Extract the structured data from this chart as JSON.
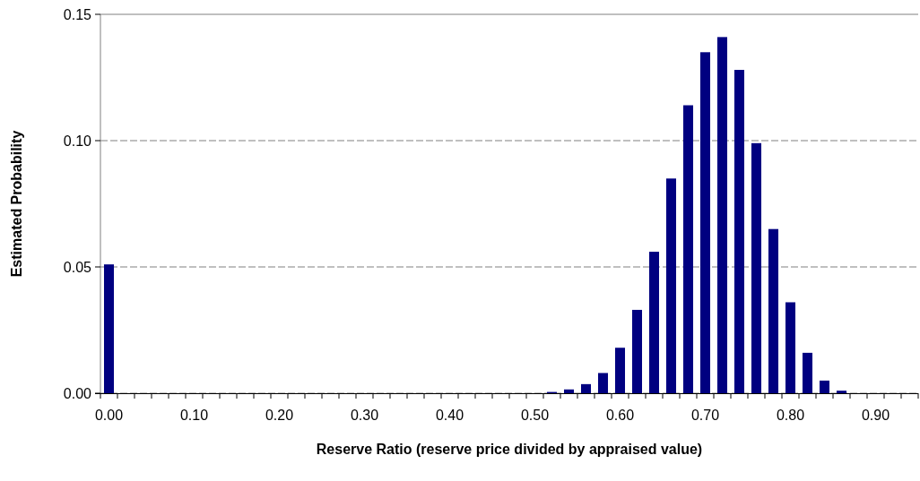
{
  "chart_data": {
    "type": "bar",
    "xlabel": "Reserve Ratio (reserve price divided by appraised value)",
    "ylabel": "Estimated Probability",
    "categories": [
      "0.00",
      null,
      null,
      null,
      null,
      "0.10",
      null,
      null,
      null,
      null,
      "0.20",
      null,
      null,
      null,
      null,
      "0.30",
      null,
      null,
      null,
      null,
      "0.40",
      null,
      null,
      null,
      null,
      "0.50",
      null,
      null,
      null,
      null,
      "0.60",
      null,
      null,
      null,
      null,
      "0.70",
      null,
      null,
      null,
      null,
      "0.80",
      null,
      null,
      null,
      null,
      "0.90",
      null,
      null
    ],
    "values": [
      0.051,
      0,
      0,
      0,
      0,
      0,
      0,
      0,
      0,
      0,
      0,
      0,
      0,
      0,
      0,
      0,
      0,
      0,
      0,
      0,
      0,
      0,
      0,
      0,
      0,
      0,
      0.0005,
      0.0015,
      0.0036,
      0.008,
      0.018,
      0.033,
      0.056,
      0.085,
      0.114,
      0.135,
      0.141,
      0.128,
      0.099,
      0.065,
      0.036,
      0.016,
      0.005,
      0.001,
      0,
      0,
      0,
      0
    ],
    "color": "#000080",
    "ylim": [
      0,
      0.15
    ],
    "yticks": [
      {
        "value": 0,
        "label": "0.00"
      },
      {
        "value": 0.05,
        "label": "0.05"
      },
      {
        "value": 0.1,
        "label": "0.10"
      },
      {
        "value": 0.15,
        "label": "0.15"
      }
    ],
    "grid": "y"
  }
}
